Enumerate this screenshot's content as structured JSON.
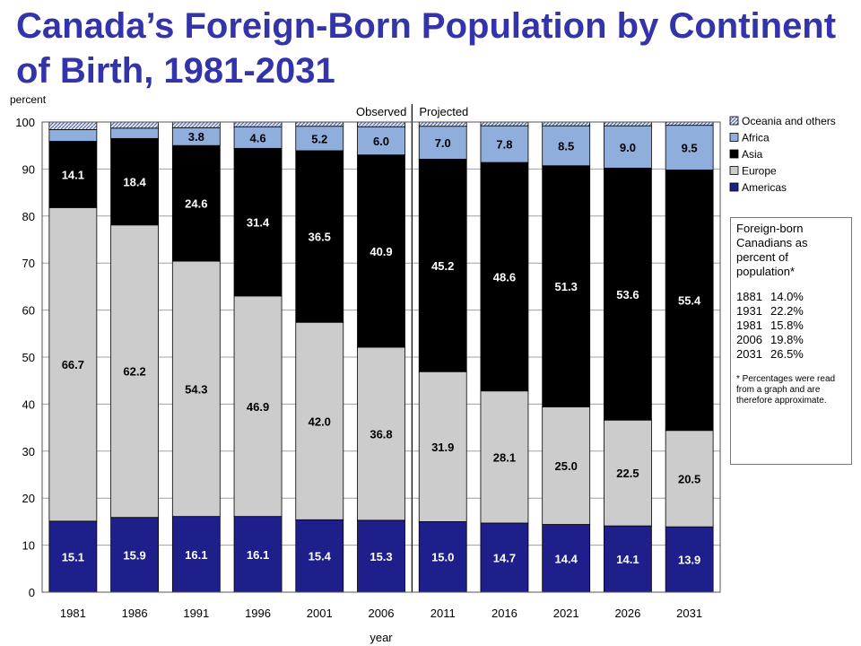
{
  "title": "Canada’s Foreign-Born Population by Continent of Birth, 1981-2031",
  "info": {
    "intro": "Foreign-born Canadians as percent of population*",
    "rows": [
      {
        "year": "1881",
        "value": "14.0%"
      },
      {
        "year": "1931",
        "value": "22.2%"
      },
      {
        "year": "1981",
        "value": "15.8%"
      },
      {
        "year": "2006",
        "value": "19.8%"
      },
      {
        "year": "2031",
        "value": "26.5%"
      }
    ],
    "note": "* Percentages were read from a graph and are therefore approximate."
  },
  "chart_data": {
    "type": "bar",
    "stacked": true,
    "title": "",
    "ylabel": "percent",
    "xlabel": "year",
    "ylim": [
      0,
      100
    ],
    "yticks": [
      0,
      10,
      20,
      30,
      40,
      50,
      60,
      70,
      80,
      90,
      100
    ],
    "grid": true,
    "legend_position": "right",
    "period_labels": [
      "Observed",
      "Projected"
    ],
    "categories": [
      "1981",
      "1986",
      "1991",
      "1996",
      "2001",
      "2006",
      "2011",
      "2016",
      "2021",
      "2026",
      "2031"
    ],
    "series": [
      {
        "name": "Americas",
        "color": "#1f1f8c",
        "label_color": "#ffffff",
        "values": [
          15.1,
          15.9,
          16.1,
          16.1,
          15.4,
          15.3,
          15.0,
          14.7,
          14.4,
          14.1,
          13.9
        ],
        "labels": [
          "15.1",
          "15.9",
          "16.1",
          "16.1",
          "15.4",
          "15.3",
          "15.0",
          "14.7",
          "14.4",
          "14.1",
          "13.9"
        ]
      },
      {
        "name": "Europe",
        "color": "#cccccc",
        "label_color": "#000000",
        "values": [
          66.7,
          62.2,
          54.3,
          46.9,
          42.0,
          36.8,
          31.9,
          28.1,
          25.0,
          22.5,
          20.5
        ],
        "labels": [
          "66.7",
          "62.2",
          "54.3",
          "46.9",
          "42.0",
          "36.8",
          "31.9",
          "28.1",
          "25.0",
          "22.5",
          "20.5"
        ]
      },
      {
        "name": "Asia",
        "color": "#000000",
        "label_color": "#ffffff",
        "values": [
          14.1,
          18.4,
          24.6,
          31.4,
          36.5,
          40.9,
          45.2,
          48.6,
          51.3,
          53.6,
          55.4
        ],
        "labels": [
          "14.1",
          "18.4",
          "24.6",
          "31.4",
          "36.5",
          "40.9",
          "45.2",
          "48.6",
          "51.3",
          "53.6",
          "55.4"
        ]
      },
      {
        "name": "Africa",
        "color": "#8faedb",
        "label_color": "#000000",
        "values": [
          2.5,
          2.2,
          3.8,
          4.6,
          5.2,
          6.0,
          7.0,
          7.8,
          8.5,
          9.0,
          9.5
        ],
        "labels": [
          "",
          "",
          "3.8",
          "4.6",
          "5.2",
          "6.0",
          "7.0",
          "7.8",
          "8.5",
          "9.0",
          "9.5"
        ]
      },
      {
        "name": "Oceania and others",
        "color": "#dde4f4",
        "label_color": "#000000",
        "values": [
          1.6,
          1.3,
          1.2,
          1.0,
          0.9,
          1.0,
          0.9,
          0.8,
          0.8,
          0.8,
          0.7
        ],
        "labels": [
          "",
          "",
          "",
          "",
          "",
          "",
          "",
          "",
          "",
          "",
          ""
        ]
      }
    ]
  }
}
